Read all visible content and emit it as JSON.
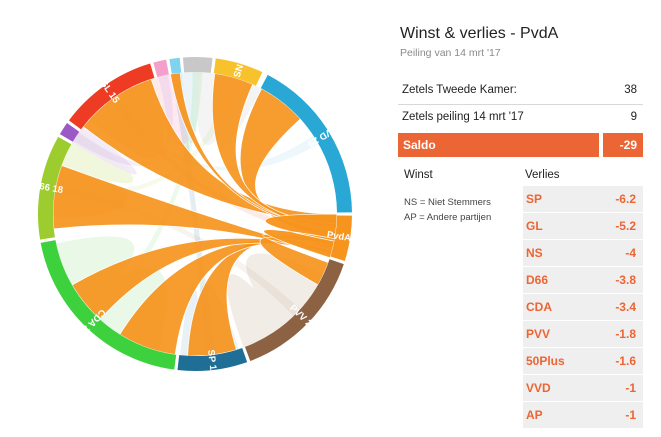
{
  "title": "Winst & verlies - PvdA",
  "subtitle": "Peiling van 14 mrt '17",
  "stats": [
    {
      "label": "Zetels Tweede Kamer:",
      "value": "38"
    },
    {
      "label": "Zetels peiling 14 mrt '17",
      "value": "9"
    }
  ],
  "saldo": {
    "label": "Saldo",
    "value": "-29"
  },
  "columns": {
    "winst": "Winst",
    "verlies": "Verlies"
  },
  "legend_notes": [
    "NS = Niet Stemmers",
    "AP = Andere partijen"
  ],
  "verlies": [
    {
      "party": "SP",
      "value": "-6.2"
    },
    {
      "party": "GL",
      "value": "-5.2"
    },
    {
      "party": "NS",
      "value": "-4"
    },
    {
      "party": "D66",
      "value": "-3.8"
    },
    {
      "party": "CDA",
      "value": "-3.4"
    },
    {
      "party": "PVV",
      "value": "-1.8"
    },
    {
      "party": "50Plus",
      "value": "-1.6"
    },
    {
      "party": "VVD",
      "value": "-1"
    },
    {
      "party": "AP",
      "value": "-1"
    }
  ],
  "colors": {
    "accent": "#ec6534",
    "flow": "#f7941d"
  },
  "chart_data": {
    "type": "chord",
    "focus": "PvdA",
    "segments": [
      {
        "label": "VVD 29",
        "color": "#29a8d6"
      },
      {
        "label": "PvdA 9",
        "color": "#f7941d"
      },
      {
        "label": "PVV 20",
        "color": "#8c6243"
      },
      {
        "label": "SP 15",
        "color": "#1e6e95"
      },
      {
        "label": "CDA 23",
        "color": "#3ed13e"
      },
      {
        "label": "D66 18",
        "color": "#9ccc2e"
      },
      {
        "label": "",
        "color": "#9b59c6"
      },
      {
        "label": "GL 15",
        "color": "#ed3b24"
      },
      {
        "label": "",
        "color": "#f5a0cb"
      },
      {
        "label": "",
        "color": "#7fd3ee"
      },
      {
        "label": "",
        "color": "#c8c8c8"
      },
      {
        "label": "NS",
        "color": "#f8c22d"
      }
    ],
    "flows_from_pvda": [
      {
        "to": "SP",
        "value": 6.2
      },
      {
        "to": "GL",
        "value": 5.2
      },
      {
        "to": "NS",
        "value": 4
      },
      {
        "to": "D66",
        "value": 3.8
      },
      {
        "to": "CDA",
        "value": 3.4
      },
      {
        "to": "PVV",
        "value": 1.8
      },
      {
        "to": "50Plus",
        "value": 1.6
      },
      {
        "to": "VVD",
        "value": 1
      },
      {
        "to": "AP",
        "value": 1
      }
    ]
  }
}
